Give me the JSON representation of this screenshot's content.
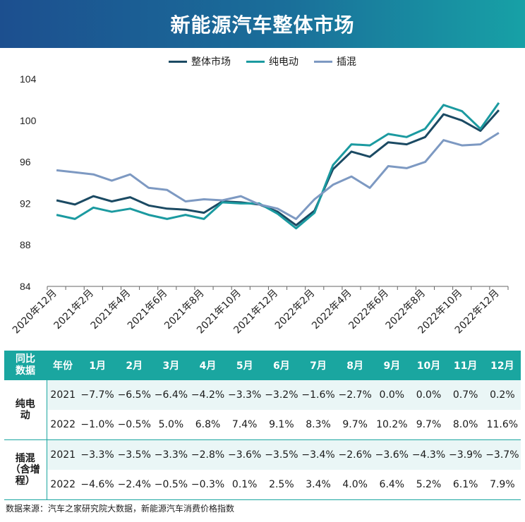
{
  "header": {
    "title": "新能源汽车整体市场"
  },
  "chart_data": {
    "type": "line",
    "title": "新能源汽车整体市场",
    "categories": [
      "2020年12月",
      "2021年1月",
      "2021年2月",
      "2021年3月",
      "2021年4月",
      "2021年5月",
      "2021年6月",
      "2021年7月",
      "2021年8月",
      "2021年9月",
      "2021年10月",
      "2021年11月",
      "2021年12月",
      "2022年1月",
      "2022年2月",
      "2022年3月",
      "2022年4月",
      "2022年5月",
      "2022年6月",
      "2022年7月",
      "2022年8月",
      "2022年9月",
      "2022年10月",
      "2022年11月",
      "2022年12月"
    ],
    "tick_labels": [
      "2020年12月",
      "2021年2月",
      "2021年4月",
      "2021年6月",
      "2021年8月",
      "2021年10月",
      "2021年12月",
      "2022年2月",
      "2022年4月",
      "2022年6月",
      "2022年8月",
      "2022年10月",
      "2022年12月"
    ],
    "ylim": [
      84,
      104
    ],
    "yticks": [
      "84",
      "88",
      "92",
      "96",
      "100",
      "104"
    ],
    "xlabel": "",
    "ylabel": "",
    "grid": false,
    "legend": "top-center",
    "series": [
      {
        "name": "整体市场",
        "color": "#1b4a63",
        "values": [
          92.3,
          91.9,
          92.7,
          92.2,
          92.6,
          91.8,
          91.5,
          91.4,
          91.1,
          92.2,
          92.1,
          91.9,
          91.2,
          89.9,
          91.3,
          95.3,
          97.0,
          96.5,
          97.9,
          97.7,
          98.4,
          100.6,
          100.0,
          99.0,
          101.0
        ]
      },
      {
        "name": "纯电动",
        "color": "#1b9aa0",
        "values": [
          90.9,
          90.5,
          91.6,
          91.2,
          91.5,
          90.9,
          90.5,
          90.9,
          90.5,
          92.1,
          92.0,
          92.0,
          91.0,
          89.6,
          91.1,
          95.7,
          97.7,
          97.6,
          98.7,
          98.4,
          99.2,
          101.5,
          100.9,
          99.2,
          101.7
        ]
      },
      {
        "name": "插混",
        "color": "#7d99c2",
        "values": [
          95.2,
          95.0,
          94.8,
          94.2,
          94.8,
          93.5,
          93.3,
          92.2,
          92.4,
          92.3,
          92.7,
          91.9,
          91.5,
          90.5,
          92.4,
          93.8,
          94.6,
          93.5,
          95.6,
          95.4,
          96.0,
          98.1,
          97.6,
          97.7,
          98.8
        ]
      }
    ]
  },
  "table": {
    "header": [
      "同比数据",
      "年份",
      "1月",
      "2月",
      "3月",
      "4月",
      "5月",
      "6月",
      "7月",
      "8月",
      "9月",
      "10月",
      "11月",
      "12月"
    ],
    "groups": [
      {
        "category": "纯电动",
        "rows": [
          {
            "year": "2021",
            "values": [
              "−7.7%",
              "−6.5%",
              "−6.4%",
              "−4.2%",
              "−3.3%",
              "−3.2%",
              "−1.6%",
              "−2.7%",
              "0.0%",
              "0.0%",
              "0.7%",
              "0.2%"
            ]
          },
          {
            "year": "2022",
            "values": [
              "−1.0%",
              "−0.5%",
              "5.0%",
              "6.8%",
              "7.4%",
              "9.1%",
              "8.3%",
              "9.7%",
              "10.2%",
              "9.7%",
              "8.0%",
              "11.6%"
            ]
          }
        ]
      },
      {
        "category": "插混（含增程）",
        "rows": [
          {
            "year": "2021",
            "values": [
              "−3.3%",
              "−3.5%",
              "−3.3%",
              "−2.8%",
              "−3.6%",
              "−3.5%",
              "−3.4%",
              "−2.6%",
              "−3.6%",
              "−4.3%",
              "−3.9%",
              "−3.7%"
            ]
          },
          {
            "year": "2022",
            "values": [
              "−4.6%",
              "−2.4%",
              "−0.5%",
              "−0.3%",
              "0.1%",
              "2.5%",
              "3.4%",
              "4.0%",
              "6.4%",
              "5.2%",
              "6.1%",
              "7.9%"
            ]
          }
        ]
      }
    ]
  },
  "footer": {
    "source": "数据来源：汽车之家研究院大数据，新能源汽车消费价格指数"
  }
}
